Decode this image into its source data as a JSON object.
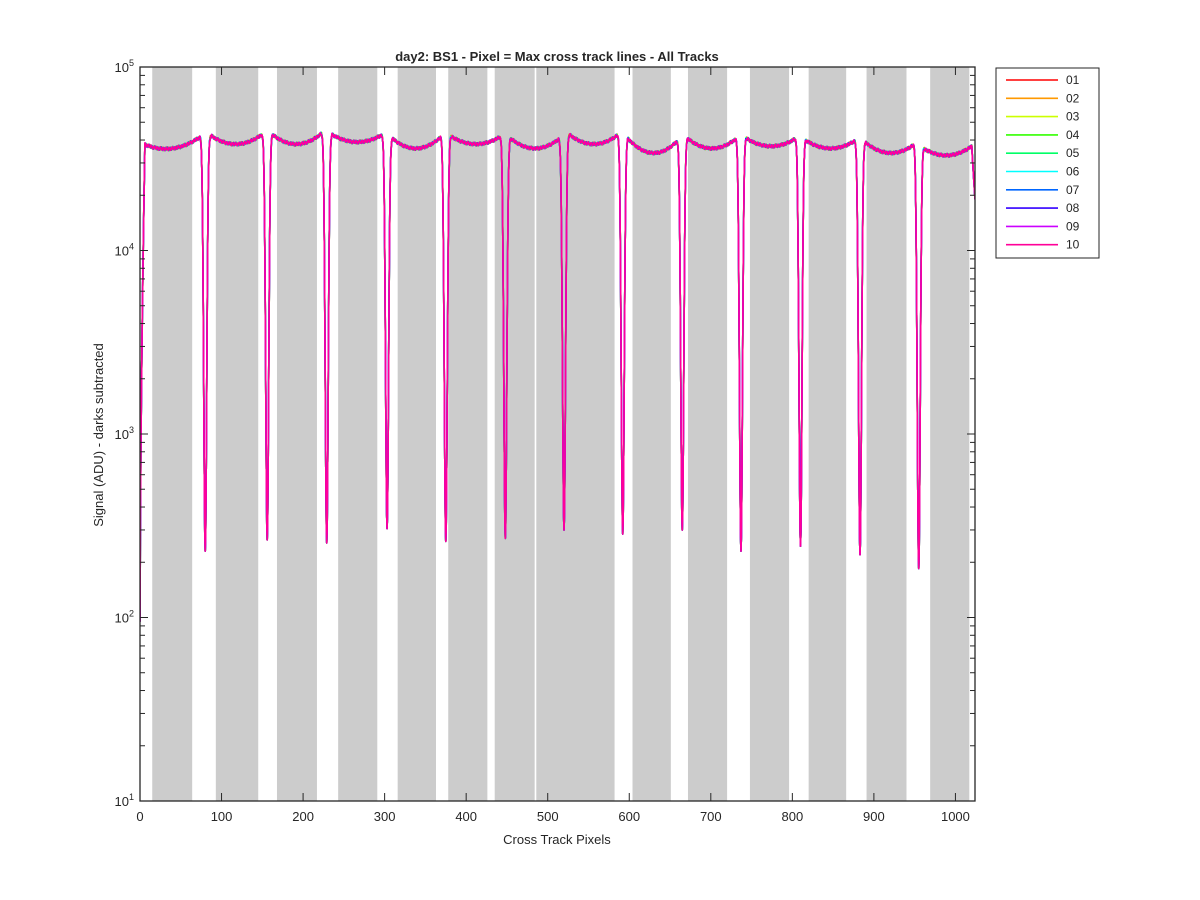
{
  "chart_data": {
    "type": "line",
    "title": "day2: BS1 - Pixel = Max cross track lines - All Tracks",
    "xlabel": "Cross Track Pixels",
    "ylabel": "Signal (ADU) - darks subtracted",
    "xlim": [
      0,
      1024
    ],
    "ylim": [
      10,
      100000
    ],
    "yscale": "log",
    "grid": false,
    "legend_position": "outside-top-right",
    "xticks": [
      0,
      100,
      200,
      300,
      400,
      500,
      600,
      700,
      800,
      900,
      1000
    ],
    "xtick_labels": [
      "0",
      "100",
      "200",
      "300",
      "400",
      "500",
      "600",
      "700",
      "800",
      "900",
      "1000"
    ],
    "yticks": [
      {
        "value": 10,
        "base": "10",
        "exp": "1"
      },
      {
        "value": 100,
        "base": "10",
        "exp": "2"
      },
      {
        "value": 1000,
        "base": "10",
        "exp": "3"
      },
      {
        "value": 10000,
        "base": "10",
        "exp": "4"
      },
      {
        "value": 100000,
        "base": "10",
        "exp": "5"
      }
    ],
    "shaded_regions": [
      [
        15,
        64
      ],
      [
        93,
        145
      ],
      [
        168,
        217
      ],
      [
        243,
        291
      ],
      [
        316,
        363
      ],
      [
        378,
        426
      ],
      [
        435,
        484
      ],
      [
        486,
        538
      ],
      [
        535,
        582
      ],
      [
        604,
        651
      ],
      [
        672,
        720
      ],
      [
        748,
        796
      ],
      [
        820,
        866
      ],
      [
        891,
        940
      ],
      [
        969,
        1017
      ]
    ],
    "shaded_color": "#cccccc",
    "dips": [
      {
        "x": 80,
        "min": 230
      },
      {
        "x": 156,
        "min": 265
      },
      {
        "x": 229,
        "min": 255
      },
      {
        "x": 303,
        "min": 305
      },
      {
        "x": 375,
        "min": 260
      },
      {
        "x": 448,
        "min": 270
      },
      {
        "x": 520,
        "min": 300
      },
      {
        "x": 592,
        "min": 285
      },
      {
        "x": 665,
        "min": 300
      },
      {
        "x": 737,
        "min": 230
      },
      {
        "x": 810,
        "min": 245
      },
      {
        "x": 883,
        "min": 220
      },
      {
        "x": 955,
        "min": 185
      }
    ],
    "plateaus": [
      {
        "x0": 5,
        "x1": 75,
        "left": 38000,
        "mid": 36000,
        "right": 42000
      },
      {
        "x0": 88,
        "x1": 150,
        "left": 42000,
        "mid": 38000,
        "right": 43000
      },
      {
        "x0": 162,
        "x1": 224,
        "left": 43000,
        "mid": 38000,
        "right": 44000
      },
      {
        "x0": 235,
        "x1": 298,
        "left": 43000,
        "mid": 39000,
        "right": 43000
      },
      {
        "x0": 309,
        "x1": 370,
        "left": 41000,
        "mid": 36000,
        "right": 42000
      },
      {
        "x0": 381,
        "x1": 443,
        "left": 42000,
        "mid": 38000,
        "right": 42000
      },
      {
        "x0": 454,
        "x1": 515,
        "left": 41000,
        "mid": 36000,
        "right": 41000
      },
      {
        "x0": 526,
        "x1": 587,
        "left": 43000,
        "mid": 38000,
        "right": 43000
      },
      {
        "x0": 598,
        "x1": 660,
        "left": 41000,
        "mid": 34000,
        "right": 40000
      },
      {
        "x0": 671,
        "x1": 732,
        "left": 41000,
        "mid": 36000,
        "right": 41000
      },
      {
        "x0": 743,
        "x1": 805,
        "left": 41000,
        "mid": 37000,
        "right": 41000
      },
      {
        "x0": 816,
        "x1": 878,
        "left": 40000,
        "mid": 36000,
        "right": 40000
      },
      {
        "x0": 889,
        "x1": 950,
        "left": 39000,
        "mid": 34000,
        "right": 38000
      },
      {
        "x0": 961,
        "x1": 1020,
        "left": 36000,
        "mid": 33000,
        "right": 37000
      }
    ],
    "series": [
      {
        "name": "01",
        "color": "#ff0000"
      },
      {
        "name": "02",
        "color": "#ff9900"
      },
      {
        "name": "03",
        "color": "#ccff00"
      },
      {
        "name": "04",
        "color": "#33ff00"
      },
      {
        "name": "05",
        "color": "#00ff66"
      },
      {
        "name": "06",
        "color": "#00ffff"
      },
      {
        "name": "07",
        "color": "#0066ff"
      },
      {
        "name": "08",
        "color": "#3300ff"
      },
      {
        "name": "09",
        "color": "#cc00ff"
      },
      {
        "name": "10",
        "color": "#ff0099"
      }
    ]
  }
}
